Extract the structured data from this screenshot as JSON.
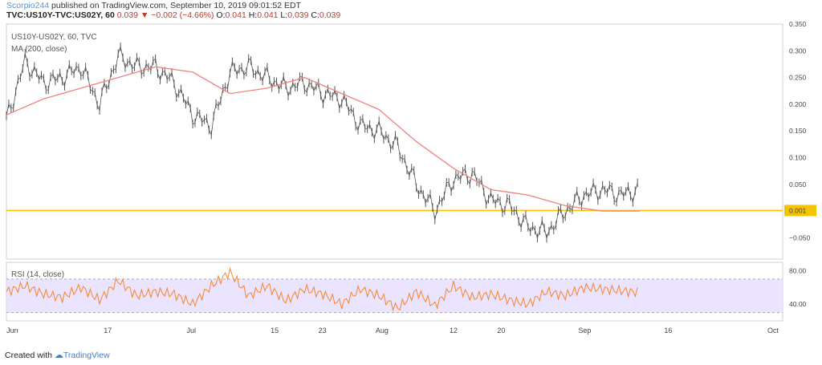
{
  "header": {
    "user": "Scorpio244",
    "published": " published on TradingView.com, September 10, 2019 09:01:52 EDT",
    "symbol": "TVC:US10Y-TVC:US02Y, 60",
    "last": "0.039",
    "change": "−0.002 (−4.66%)",
    "o_label": "O:",
    "o": "0.041",
    "h_label": "H:",
    "h": "0.041",
    "l_label": "L:",
    "l": "0.039",
    "c_label": "C:",
    "c": "0.039"
  },
  "legends": {
    "series": "US10Y-US02Y, 60, TVC",
    "ma": "MA (200, close)",
    "rsi": "RSI (14, close)"
  },
  "footer": {
    "created": "Created with",
    "brand": "TradingView"
  },
  "colors": {
    "candle": "#555555",
    "ma": "#f08080",
    "hline": "#f5c400",
    "rsi": "#f7842a",
    "rsi_band": "#e6ddff"
  },
  "chart_data": [
    {
      "type": "line",
      "title": "US10Y-US02Y, 60, TVC",
      "ylim": [
        -0.09,
        0.35
      ],
      "y_ticks": [
        "0.350",
        "0.300",
        "0.250",
        "0.200",
        "0.150",
        "0.100",
        "0.050",
        "0.001",
        "−0.050"
      ],
      "horizontal_line": 0.001,
      "x_labels": [
        "Jun",
        "17",
        "Jul",
        "15",
        "23",
        "Aug",
        "12",
        "20",
        "Sep",
        "16",
        "Oct"
      ],
      "series": [
        {
          "name": "US10Y-US02Y, 60, TVC",
          "x_day": [
            0,
            3,
            6,
            9,
            12,
            15,
            18,
            21,
            24,
            27,
            30,
            33,
            36,
            39,
            42,
            45,
            48,
            51,
            54,
            57,
            60,
            63,
            66,
            69,
            72,
            75,
            78,
            81,
            84,
            87,
            90,
            93,
            96,
            99,
            102
          ],
          "values": [
            0.17,
            0.28,
            0.24,
            0.25,
            0.27,
            0.2,
            0.29,
            0.27,
            0.27,
            0.24,
            0.18,
            0.16,
            0.26,
            0.27,
            0.25,
            0.23,
            0.24,
            0.22,
            0.21,
            0.16,
            0.15,
            0.12,
            0.05,
            0.0,
            0.06,
            0.07,
            0.02,
            0.01,
            -0.03,
            -0.04,
            0.0,
            0.03,
            0.04,
            0.03,
            0.04
          ]
        },
        {
          "name": "MA (200, close)",
          "x_day": [
            0,
            6,
            12,
            18,
            24,
            30,
            36,
            42,
            48,
            54,
            60,
            66,
            72,
            78,
            84,
            90,
            96,
            102
          ],
          "values": [
            0.18,
            0.21,
            0.23,
            0.25,
            0.27,
            0.26,
            0.22,
            0.23,
            0.25,
            0.22,
            0.19,
            0.13,
            0.08,
            0.04,
            0.03,
            0.01,
            0.0,
            0.0
          ]
        }
      ]
    },
    {
      "type": "line",
      "title": "RSI (14, close)",
      "ylim": [
        20,
        90
      ],
      "y_ticks": [
        "80.00",
        "40.00"
      ],
      "series": [
        {
          "name": "RSI (14, close)",
          "x_day": [
            0,
            3,
            6,
            9,
            12,
            15,
            18,
            21,
            24,
            27,
            30,
            33,
            36,
            39,
            42,
            45,
            48,
            51,
            54,
            57,
            60,
            63,
            66,
            69,
            72,
            75,
            78,
            81,
            84,
            87,
            90,
            93,
            96,
            99,
            102
          ],
          "values": [
            55,
            62,
            52,
            48,
            60,
            45,
            68,
            50,
            55,
            52,
            40,
            62,
            78,
            50,
            62,
            44,
            58,
            52,
            40,
            58,
            50,
            35,
            55,
            38,
            62,
            48,
            52,
            45,
            40,
            55,
            50,
            60,
            58,
            56,
            54
          ]
        }
      ]
    }
  ]
}
